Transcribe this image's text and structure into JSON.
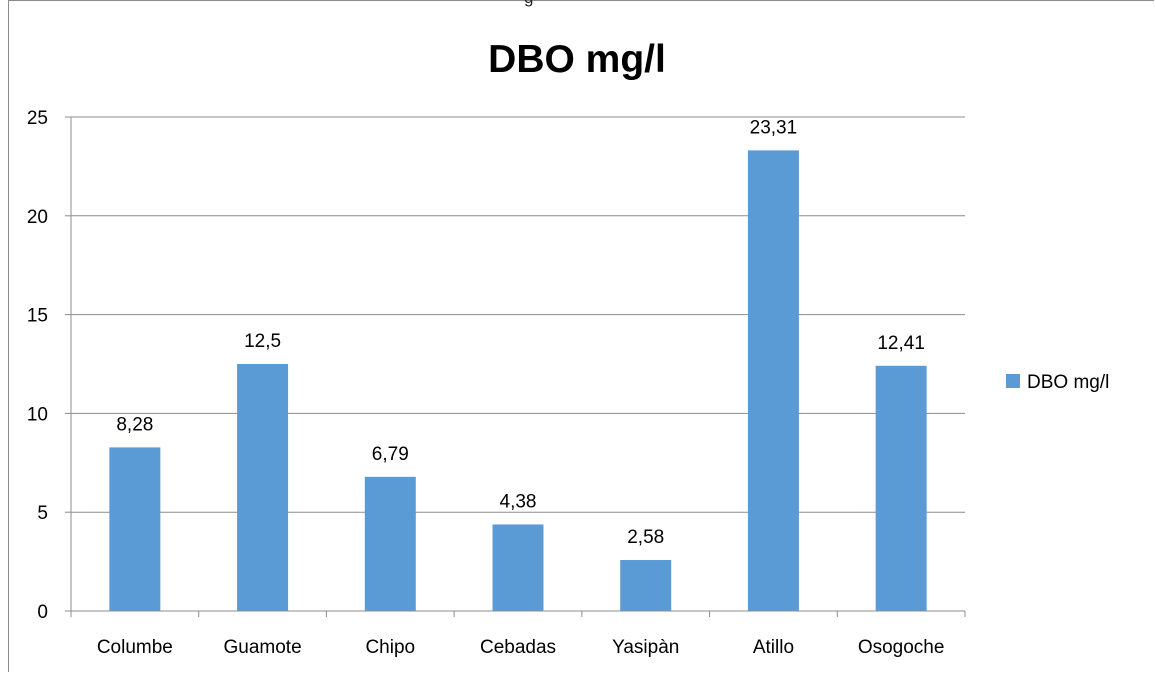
{
  "top_fragment": "g",
  "chart_data": {
    "type": "bar",
    "title": "DBO mg/l",
    "categories": [
      "Columbe",
      "Guamote",
      "Chipo",
      "Cebadas",
      "Yasipàn",
      "Atillo",
      "Osogoche"
    ],
    "series": [
      {
        "name": "DBO mg/l",
        "values": [
          8.28,
          12.5,
          6.79,
          4.38,
          2.58,
          23.31,
          12.41
        ],
        "labels": [
          "8,28",
          "12,5",
          "6,79",
          "4,38",
          "2,58",
          "23,31",
          "12,41"
        ],
        "color": "#5b9bd5"
      }
    ],
    "ylim": [
      0,
      25
    ],
    "yticks": [
      0,
      5,
      10,
      15,
      20,
      25
    ],
    "xlabel": "",
    "ylabel": "",
    "grid": true,
    "legend_position": "right"
  }
}
